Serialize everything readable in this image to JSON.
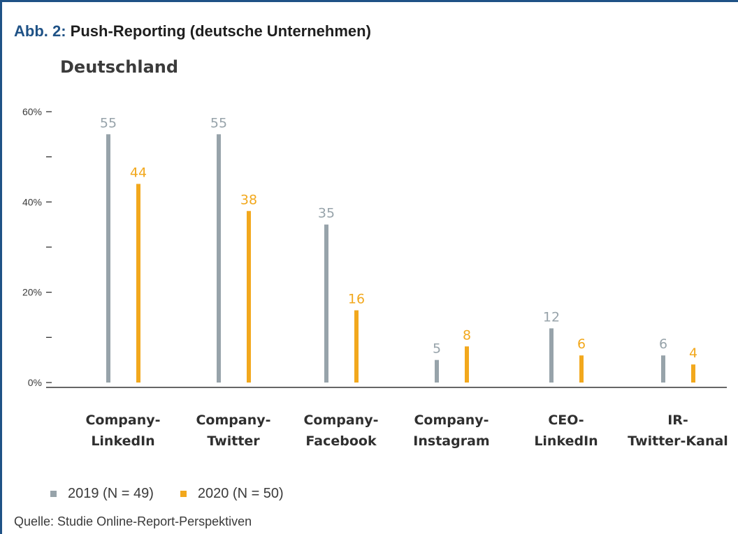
{
  "figure_label": "Abb. 2:",
  "figure_title": "Push-Reporting (deutsche Unternehmen)",
  "source_text": "Quelle: Studie Online-Report-Perspektiven",
  "colors": {
    "frame": "#1f5286",
    "label_blue": "#1f5286",
    "series_2019": "#97a3aa",
    "series_2020": "#f2a81d",
    "axis": "#333333"
  },
  "chart_data": {
    "type": "bar",
    "title": "Deutschland",
    "xlabel": "",
    "ylabel": "",
    "ylim": [
      0,
      60
    ],
    "y_ticks": [
      "0%",
      "",
      "20%",
      "",
      "40%",
      "",
      "60%"
    ],
    "categories": [
      [
        "Company-",
        "LinkedIn"
      ],
      [
        "Company-",
        "Twitter"
      ],
      [
        "Company-",
        "Facebook"
      ],
      [
        "Company-",
        "Instagram"
      ],
      [
        "CEO-",
        "LinkedIn"
      ],
      [
        "IR-",
        "Twitter-Kanal"
      ]
    ],
    "series": [
      {
        "name": "2019 (N = 49)",
        "values": [
          55,
          55,
          35,
          5,
          12,
          6
        ]
      },
      {
        "name": "2020 (N = 50)",
        "values": [
          44,
          38,
          16,
          8,
          6,
          4
        ]
      }
    ],
    "grid": false,
    "legend": "bottom-left"
  }
}
